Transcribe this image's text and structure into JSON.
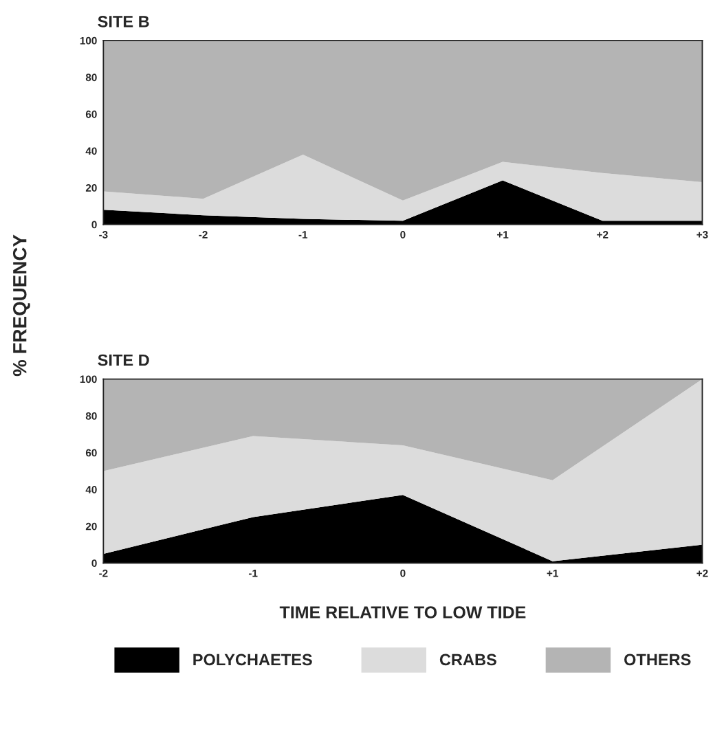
{
  "chart_data": [
    {
      "type": "area",
      "title": "SITE B",
      "ylabel": "% FREQUENCY",
      "stacked": true,
      "x": [
        -3,
        -2,
        -1,
        0,
        1,
        2,
        3
      ],
      "xlim": [
        -3,
        3
      ],
      "xticks": [
        -3,
        -2,
        -1,
        0,
        {
          "value": 1,
          "label": "+1"
        },
        {
          "value": 2,
          "label": "+2"
        },
        {
          "value": 3,
          "label": "+3"
        }
      ],
      "ylim": [
        0,
        100
      ],
      "yticks": [
        0,
        20,
        40,
        60,
        80,
        100
      ],
      "series": [
        {
          "color": "#000000",
          "values": [
            8,
            5,
            3,
            2,
            24,
            2,
            2
          ]
        },
        {
          "color": "#dcdcdc",
          "values": [
            10,
            9,
            35,
            11,
            10,
            26,
            21
          ]
        },
        {
          "color": "#b4b4b4",
          "values": [
            82,
            86,
            62,
            87,
            66,
            72,
            77
          ]
        }
      ]
    },
    {
      "type": "area",
      "title": "SITE D",
      "xlabel": "TIME RELATIVE TO LOW TIDE",
      "stacked": true,
      "legend": "bottom",
      "x": [
        -2,
        -1,
        0,
        1,
        2
      ],
      "xlim": [
        -2,
        2
      ],
      "xticks": [
        -2,
        -1,
        0,
        {
          "value": 1,
          "label": "+1"
        },
        {
          "value": 2,
          "label": "+2"
        }
      ],
      "ylim": [
        0,
        100
      ],
      "yticks": [
        0,
        20,
        40,
        60,
        80,
        100
      ],
      "series": [
        {
          "name": "POLYCHAETES",
          "color": "#000000",
          "values": [
            5,
            25,
            37,
            1,
            10
          ]
        },
        {
          "name": "CRABS",
          "color": "#dcdcdc",
          "values": [
            45,
            44,
            27,
            44,
            90
          ]
        },
        {
          "name": "OTHERS",
          "color": "#b4b4b4",
          "values": [
            50,
            31,
            36,
            55,
            0
          ]
        }
      ]
    }
  ]
}
